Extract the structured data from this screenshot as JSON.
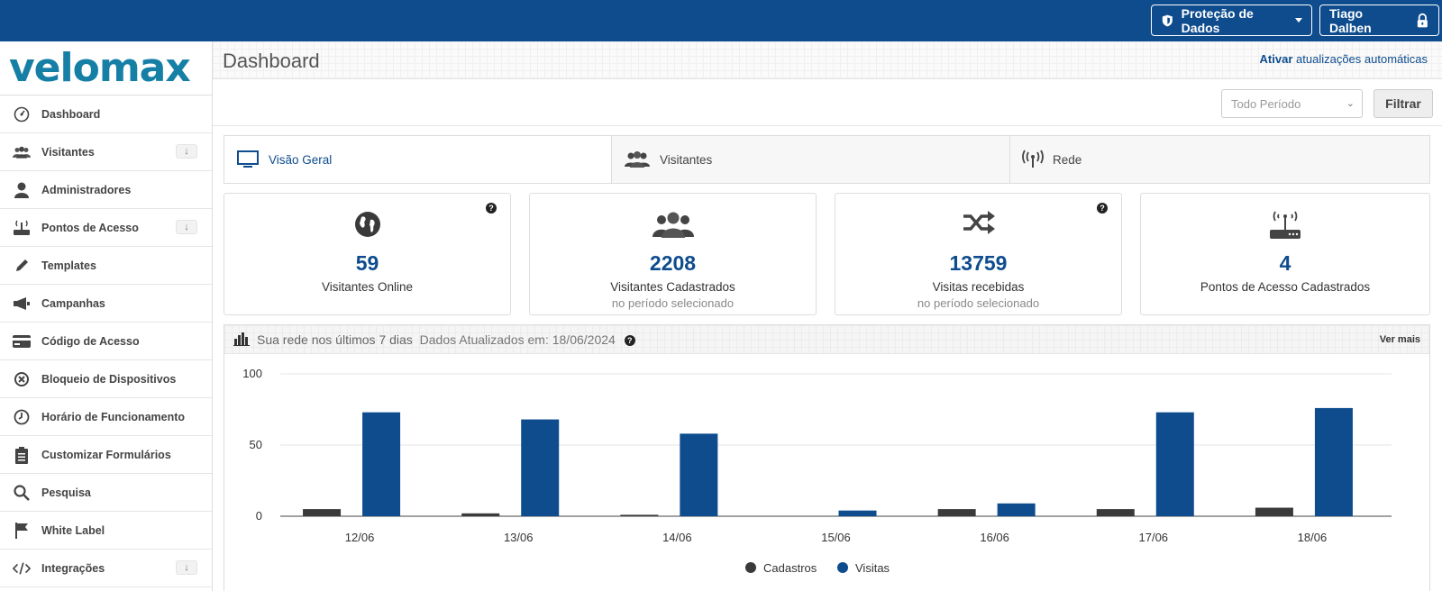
{
  "topbar": {
    "privacy_label": "Proteção de Dados",
    "user_label": "Tiago Dalben"
  },
  "sidebar": {
    "logo": "velomax",
    "items": [
      {
        "label": "Dashboard",
        "icon": "dashboard-gauge-icon",
        "expandable": false
      },
      {
        "label": "Visitantes",
        "icon": "users-icon",
        "expandable": true
      },
      {
        "label": "Administradores",
        "icon": "user-icon",
        "expandable": false
      },
      {
        "label": "Pontos de Acesso",
        "icon": "router-icon",
        "expandable": true
      },
      {
        "label": "Templates",
        "icon": "pencil-icon",
        "expandable": false
      },
      {
        "label": "Campanhas",
        "icon": "megaphone-icon",
        "expandable": false
      },
      {
        "label": "Código de Acesso",
        "icon": "card-icon",
        "expandable": false
      },
      {
        "label": "Bloqueio de Dispositivos",
        "icon": "block-icon",
        "expandable": false
      },
      {
        "label": "Horário de Funcionamento",
        "icon": "clock-icon",
        "expandable": false
      },
      {
        "label": "Customizar Formulários",
        "icon": "clipboard-icon",
        "expandable": false
      },
      {
        "label": "Pesquisa",
        "icon": "search-icon",
        "expandable": false
      },
      {
        "label": "White Label",
        "icon": "flag-icon",
        "expandable": false
      },
      {
        "label": "Integrações",
        "icon": "code-icon",
        "expandable": true
      }
    ],
    "expand_arrow": "↓"
  },
  "header": {
    "title": "Dashboard",
    "auto_update_bold": "Ativar",
    "auto_update_rest": "atualizações automáticas"
  },
  "filter": {
    "period_value": "Todo Período",
    "button_label": "Filtrar"
  },
  "tabs": [
    {
      "label": "Visão Geral",
      "icon": "monitor-icon",
      "active": true
    },
    {
      "label": "Visitantes",
      "icon": "users-icon",
      "active": false
    },
    {
      "label": "Rede",
      "icon": "antenna-icon",
      "active": false
    }
  ],
  "cards": [
    {
      "value": "59",
      "label": "Visitantes Online",
      "sub": "",
      "icon": "globe-icon",
      "help": true
    },
    {
      "value": "2208",
      "label": "Visitantes Cadastrados",
      "sub": "no período selecionado",
      "icon": "users-icon",
      "help": false
    },
    {
      "value": "13759",
      "label": "Visitas recebidas",
      "sub": "no período selecionado",
      "icon": "shuffle-icon",
      "help": true
    },
    {
      "value": "4",
      "label": "Pontos de Acesso Cadastrados",
      "sub": "",
      "icon": "router-icon",
      "help": false
    }
  ],
  "chart_panel": {
    "title": "Sua rede nos últimos 7 dias",
    "updated": "Dados Atualizados em: 18/06/2024",
    "more_label": "Ver mais",
    "help_mark": "?"
  },
  "chart_data": {
    "type": "bar",
    "title": "Sua rede nos últimos 7 dias",
    "categories": [
      "12/06",
      "13/06",
      "14/06",
      "15/06",
      "16/06",
      "17/06",
      "18/06"
    ],
    "series": [
      {
        "name": "Cadastros",
        "values": [
          5,
          2,
          1,
          0,
          5,
          5,
          6
        ],
        "color": "#3a3a3a"
      },
      {
        "name": "Visitas",
        "values": [
          73,
          68,
          58,
          4,
          9,
          73,
          76
        ],
        "color": "#0e4c8e"
      }
    ],
    "yticks": [
      0,
      50,
      100
    ],
    "ylim": [
      0,
      100
    ],
    "legend": "bottom-center"
  },
  "colors": {
    "brand": "#0e4c8e",
    "logo": "#157fa6"
  }
}
